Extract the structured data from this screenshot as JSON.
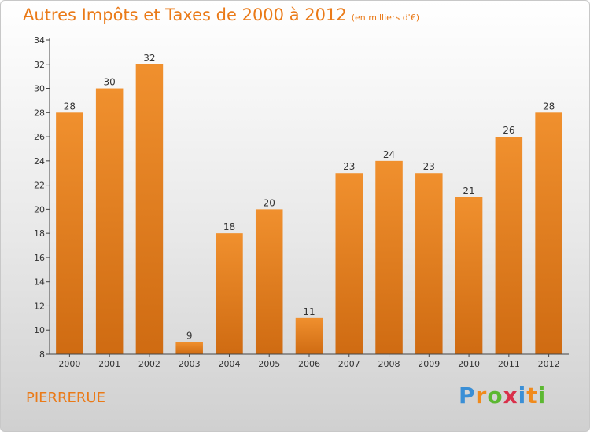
{
  "chart_data": {
    "type": "bar",
    "title": "Autres Impôts et Taxes de 2000 à 2012",
    "subtitle": "(en milliers d'€)",
    "categories": [
      "2000",
      "2001",
      "2002",
      "2003",
      "2004",
      "2005",
      "2006",
      "2007",
      "2008",
      "2009",
      "2010",
      "2011",
      "2012"
    ],
    "values": [
      28,
      30,
      32,
      9,
      18,
      20,
      11,
      23,
      24,
      23,
      21,
      26,
      28
    ],
    "ylim": [
      8,
      34
    ],
    "yticks": [
      8,
      10,
      12,
      14,
      16,
      18,
      20,
      22,
      24,
      26,
      28,
      30,
      32,
      34
    ],
    "grid": false,
    "bar_color": "#f0902e",
    "bar_color_dark": "#cf6b12"
  },
  "commune": "PIERRERUE",
  "logo": {
    "letters": [
      "P",
      "r",
      "o",
      "x",
      "i",
      "t",
      "i"
    ],
    "colors": [
      "#3a8fd6",
      "#f08a1c",
      "#5cb832",
      "#d9304a",
      "#3a8fd6",
      "#f08a1c",
      "#5cb832"
    ]
  }
}
